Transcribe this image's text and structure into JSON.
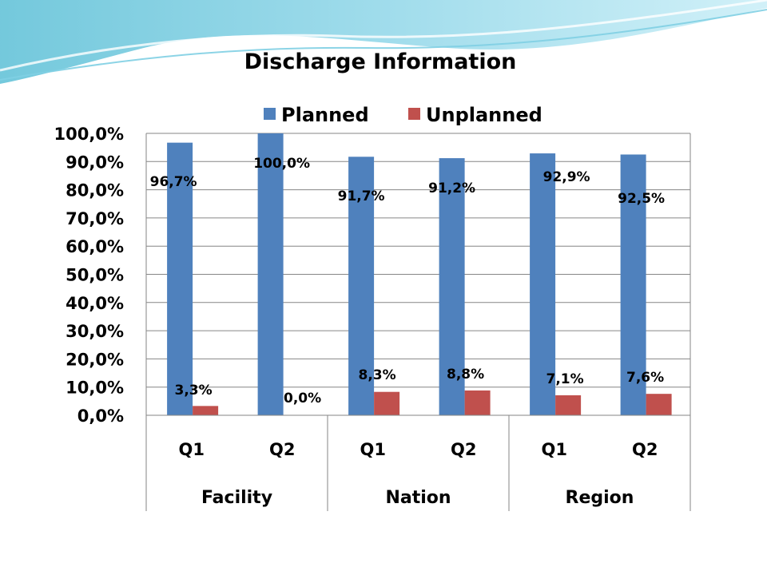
{
  "chart_data": {
    "type": "bar",
    "title": "Discharge Information",
    "groups": [
      "Facility",
      "Nation",
      "Region"
    ],
    "categories": [
      "Q1",
      "Q2",
      "Q1",
      "Q2",
      "Q1",
      "Q2"
    ],
    "series": [
      {
        "name": "Planned",
        "color": "#4f81bd",
        "values": [
          96.7,
          100.0,
          91.7,
          91.2,
          92.9,
          92.5
        ],
        "labels": [
          "96,7%",
          "100,0%",
          "91,7%",
          "91,2%",
          "92,9%",
          "92,5%"
        ]
      },
      {
        "name": "Unplanned",
        "color": "#c0504d",
        "values": [
          3.3,
          0.0,
          8.3,
          8.8,
          7.1,
          7.6
        ],
        "labels": [
          "3,3%",
          "0,0%",
          "8,3%",
          "8,8%",
          "7,1%",
          "7,6%"
        ]
      }
    ],
    "ylim": [
      0,
      100
    ],
    "yticks": [
      "0,0%",
      "10,0%",
      "20,0%",
      "30,0%",
      "40,0%",
      "50,0%",
      "60,0%",
      "70,0%",
      "80,0%",
      "90,0%",
      "100,0%"
    ],
    "legend_position": "top",
    "grid": true,
    "xlabel": "",
    "ylabel": ""
  }
}
